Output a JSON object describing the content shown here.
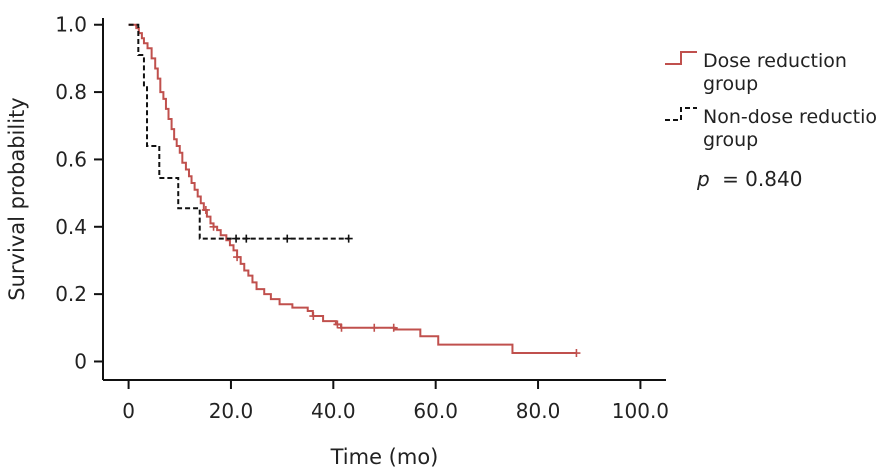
{
  "chart_data": {
    "type": "line",
    "subtype": "kaplan-meier",
    "title": "",
    "xlabel": "Time (mo)",
    "ylabel": "Survival probability",
    "xlim": [
      -5,
      105
    ],
    "ylim": [
      -0.055,
      1.02
    ],
    "xticks": [
      0,
      20,
      40,
      60,
      80,
      100
    ],
    "xtick_labels": [
      "0",
      "20.0",
      "40.0",
      "60.0",
      "80.0",
      "100.0"
    ],
    "yticks": [
      0,
      0.2,
      0.4,
      0.6,
      0.8,
      1.0
    ],
    "ytick_labels": [
      "0",
      "0.2",
      "0.4",
      "0.6",
      "0.8",
      "1.0"
    ],
    "grid": false,
    "legend_position": "right",
    "annotation": {
      "p_label": "p",
      "p_value": "= 0.840"
    },
    "series": [
      {
        "name_lines": [
          "Dose reduction",
          "group"
        ],
        "color": "#c0504d",
        "dash": "solid",
        "x": [
          0,
          1.5,
          2.0,
          2.6,
          3.0,
          3.7,
          4.5,
          5.2,
          5.7,
          6.2,
          6.8,
          7.3,
          7.8,
          8.4,
          8.9,
          9.4,
          10.0,
          10.5,
          11.2,
          11.8,
          12.3,
          12.9,
          13.5,
          14.1,
          14.7,
          15.3,
          16.0,
          16.6,
          17.3,
          18.0,
          19.1,
          19.8,
          20.5,
          21.2,
          21.9,
          22.6,
          23.4,
          24.2,
          25.0,
          26.5,
          27.8,
          29.5,
          32.0,
          35.0,
          36.0,
          38.0,
          40.5,
          41.5,
          52.0,
          57.0,
          60.5,
          75.0,
          87.5
        ],
        "y": [
          1.0,
          0.99,
          0.975,
          0.96,
          0.945,
          0.93,
          0.9,
          0.87,
          0.84,
          0.8,
          0.78,
          0.75,
          0.72,
          0.69,
          0.66,
          0.64,
          0.62,
          0.59,
          0.57,
          0.55,
          0.53,
          0.51,
          0.49,
          0.47,
          0.45,
          0.43,
          0.41,
          0.4,
          0.39,
          0.375,
          0.36,
          0.345,
          0.33,
          0.31,
          0.29,
          0.27,
          0.255,
          0.235,
          0.215,
          0.2,
          0.185,
          0.17,
          0.16,
          0.15,
          0.135,
          0.12,
          0.11,
          0.1,
          0.095,
          0.075,
          0.05,
          0.025,
          0.025
        ],
        "censor_x": [
          15.1,
          16.6,
          21.2,
          36.1,
          40.8,
          41.6,
          48.0,
          51.8,
          87.5
        ]
      },
      {
        "name_lines": [
          "Non-dose reduction",
          "group"
        ],
        "color": "#111111",
        "dash": "dashed",
        "x": [
          0,
          1.9,
          3.0,
          3.6,
          6.0,
          9.7,
          13.9,
          43.0
        ],
        "y": [
          1.0,
          0.91,
          0.82,
          0.64,
          0.545,
          0.455,
          0.365,
          0.365
        ],
        "censor_x": [
          21.0,
          23.0,
          31.0,
          43.0
        ]
      }
    ]
  }
}
